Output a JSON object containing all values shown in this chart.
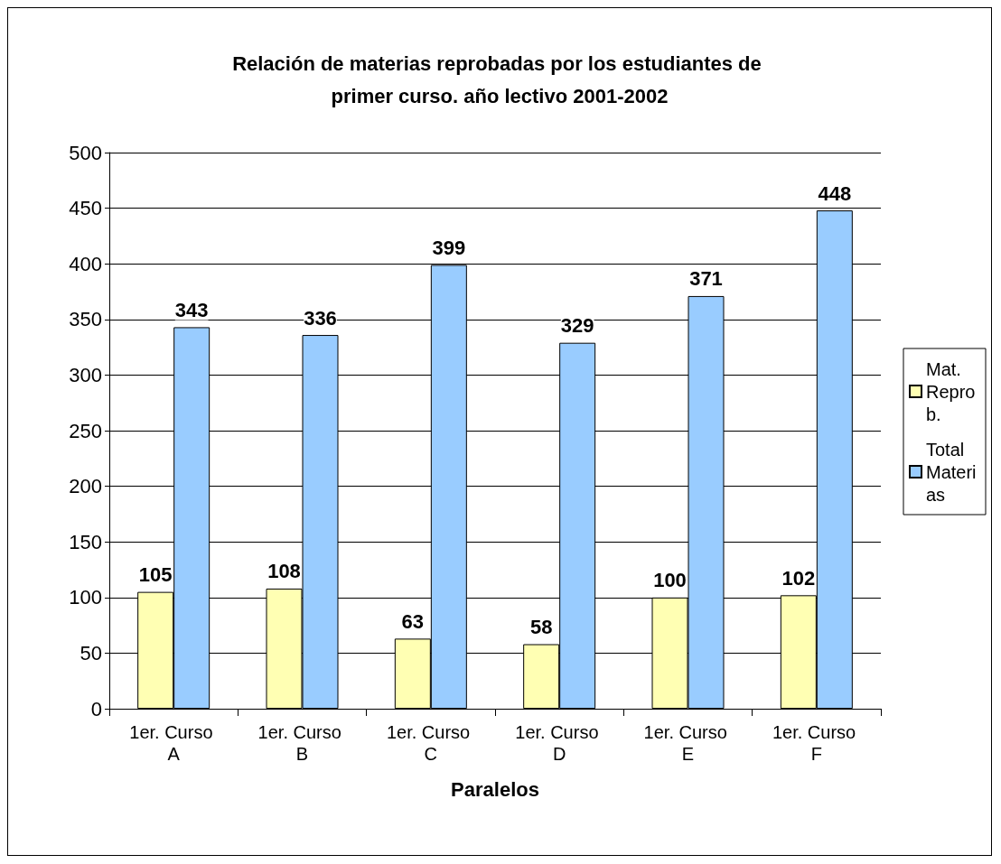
{
  "chart_data": {
    "type": "bar",
    "title": "Relación de materias reprobadas por los estudiantes de primer curso. año lectivo 2001-2002",
    "xlabel": "Paralelos",
    "categories": [
      "1er. Curso A",
      "1er. Curso B",
      "1er. Curso C",
      "1er. Curso D",
      "1er. Curso E",
      "1er. Curso F"
    ],
    "series": [
      {
        "name": "Mat. Reprob.",
        "color": "#ffffb3",
        "values": [
          105,
          108,
          63,
          58,
          100,
          102
        ]
      },
      {
        "name": "Total Materias",
        "color": "#99ccff",
        "values": [
          343,
          336,
          399,
          329,
          371,
          448
        ]
      }
    ],
    "ylim": [
      0,
      500
    ],
    "yticks": [
      0,
      50,
      100,
      150,
      200,
      250,
      300,
      350,
      400,
      450,
      500
    ],
    "grid": "y",
    "legend": "right",
    "data_labels": true
  }
}
